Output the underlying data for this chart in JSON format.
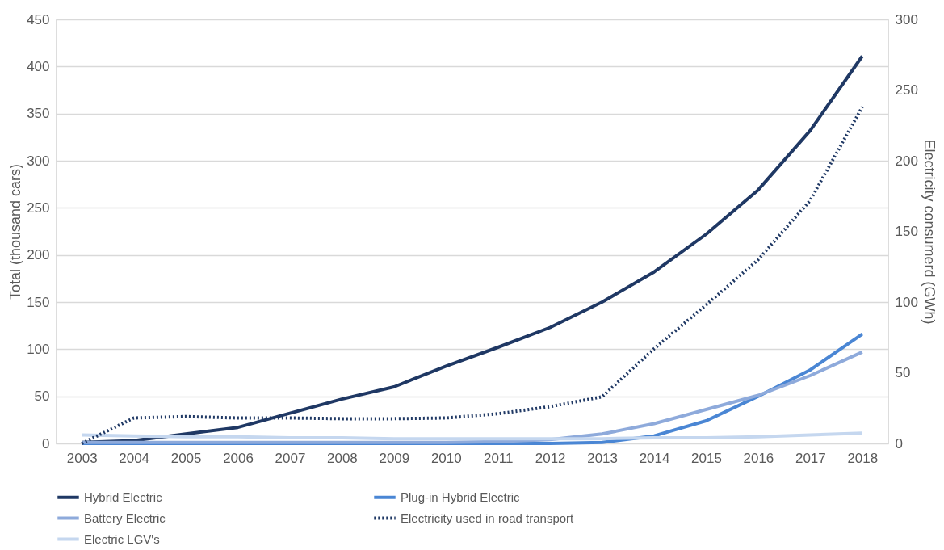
{
  "chart_data": {
    "type": "line",
    "categories": [
      "2003",
      "2004",
      "2005",
      "2006",
      "2007",
      "2008",
      "2009",
      "2010",
      "2011",
      "2012",
      "2013",
      "2014",
      "2015",
      "2016",
      "2017",
      "2018"
    ],
    "ylabel": "Total (thousand cars)",
    "y2label": "Electricity consumerd (GWh)",
    "ylim": [
      0,
      450
    ],
    "yticks": [
      0,
      50,
      100,
      150,
      200,
      250,
      300,
      350,
      400,
      450
    ],
    "y2lim": [
      0,
      300
    ],
    "y2ticks": [
      0,
      50,
      100,
      150,
      200,
      250,
      300
    ],
    "grid": "y",
    "legend": "bottom",
    "marker": "none",
    "series": [
      {
        "name": "Hybrid Electric",
        "color": "#1f3864",
        "line_style": "solid",
        "axis": "y",
        "values": [
          1,
          3,
          10,
          17,
          32,
          47,
          60,
          82,
          102,
          123,
          150,
          182,
          222,
          269,
          332,
          411
        ]
      },
      {
        "name": "Plug-in Hybrid Electric",
        "color": "#4a86d4",
        "line_style": "solid",
        "axis": "y",
        "values": [
          0,
          0,
          0,
          0,
          0,
          0,
          0,
          0,
          0,
          0,
          1,
          8,
          24,
          50,
          78,
          116
        ]
      },
      {
        "name": "Battery Electric",
        "color": "#8eaadb",
        "line_style": "solid",
        "axis": "y",
        "values": [
          1,
          1,
          1,
          1,
          1,
          1,
          1,
          1,
          2,
          4,
          10,
          21,
          36,
          51,
          72,
          97
        ]
      },
      {
        "name": "Electricity used in road transport",
        "color": "#1f3864",
        "line_style": "dotted",
        "axis": "y2",
        "values": [
          0,
          18,
          19,
          18,
          18,
          17.5,
          17.5,
          18,
          21,
          26,
          33,
          67,
          98,
          130,
          172,
          238
        ]
      },
      {
        "name": "Electric LGV's",
        "color": "#c5d7ef",
        "line_style": "solid",
        "axis": "y",
        "values": [
          9,
          8,
          7,
          7,
          6,
          6,
          5,
          5,
          5,
          5,
          5,
          6,
          6,
          7,
          9,
          11
        ]
      }
    ]
  }
}
